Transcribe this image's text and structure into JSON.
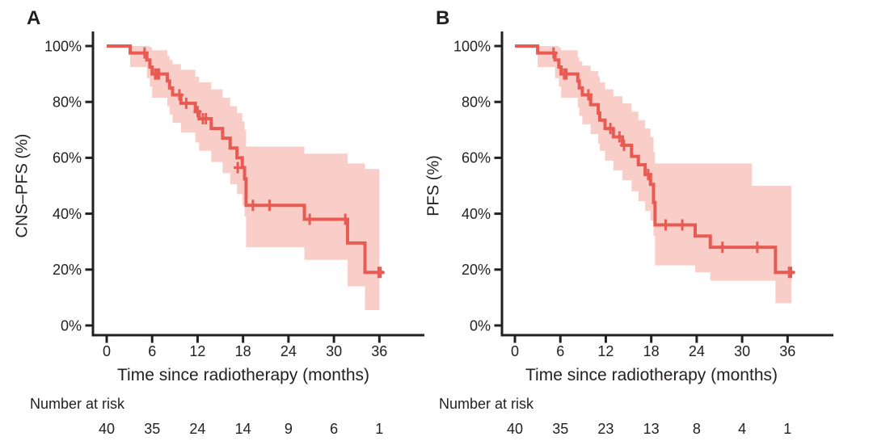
{
  "figure": {
    "background": "#ffffff",
    "text_color": "#231f20",
    "axis_color": "#231f20",
    "curve_color": "#e85b52",
    "band_color": "#f9cec9"
  },
  "chart_data": [
    {
      "type": "line",
      "subtype": "kaplan-meier",
      "panel_label": "A",
      "ylabel": "CNS–PFS (%)",
      "xlabel": "Time since radiotherapy (months)",
      "risk_caption": "Number at risk",
      "x_ticks": [
        0,
        6,
        12,
        18,
        24,
        30,
        36
      ],
      "y_tick_values": [
        100,
        80,
        60,
        40,
        20,
        0
      ],
      "y_tick_labels": [
        "100%",
        "80%",
        "60%",
        "40%",
        "20%",
        "0%"
      ],
      "xlim": [
        0,
        42
      ],
      "ylim": [
        0,
        100
      ],
      "grid": false,
      "number_at_risk": [
        40,
        35,
        24,
        14,
        9,
        6,
        1
      ],
      "curve": [
        [
          0,
          100
        ],
        [
          3.1,
          97.5
        ],
        [
          5.3,
          95
        ],
        [
          5.7,
          92.5
        ],
        [
          6.0,
          90
        ],
        [
          8.0,
          87.5
        ],
        [
          8.3,
          85
        ],
        [
          8.7,
          82.5
        ],
        [
          9.8,
          79.5
        ],
        [
          11.7,
          76.5
        ],
        [
          12.2,
          74
        ],
        [
          13.8,
          70.5
        ],
        [
          15.3,
          67
        ],
        [
          16.3,
          63.5
        ],
        [
          17.2,
          60
        ],
        [
          17.9,
          56.5
        ],
        [
          18.2,
          52.5
        ],
        [
          18.4,
          43
        ],
        [
          26.1,
          38
        ],
        [
          31.8,
          29.5
        ],
        [
          34.1,
          19
        ],
        [
          36.6,
          19
        ]
      ],
      "censors": [
        [
          5.0,
          97.5
        ],
        [
          6.4,
          90
        ],
        [
          6.65,
          90
        ],
        [
          6.9,
          90
        ],
        [
          9.6,
          82.5
        ],
        [
          10.5,
          79.5
        ],
        [
          12.0,
          76.5
        ],
        [
          12.7,
          74
        ],
        [
          13.1,
          74
        ],
        [
          17.3,
          56.5
        ],
        [
          19.3,
          43
        ],
        [
          21.5,
          43
        ],
        [
          26.8,
          38
        ],
        [
          31.5,
          38
        ],
        [
          35.9,
          19
        ],
        [
          36.15,
          19
        ]
      ],
      "band": [
        [
          3.1,
          92.5,
          100
        ],
        [
          5.3,
          88.5,
          100
        ],
        [
          5.7,
          85.5,
          99.5
        ],
        [
          6.0,
          81.5,
          98.5
        ],
        [
          8.0,
          78.5,
          96.5
        ],
        [
          8.3,
          75.5,
          95
        ],
        [
          8.7,
          72.5,
          93.5
        ],
        [
          9.8,
          69,
          91.5
        ],
        [
          11.7,
          65.5,
          89
        ],
        [
          12.2,
          62.5,
          87
        ],
        [
          13.8,
          58.5,
          84.5
        ],
        [
          15.3,
          54.5,
          81.5
        ],
        [
          16.3,
          50.5,
          78.5
        ],
        [
          17.2,
          47,
          76
        ],
        [
          17.9,
          43,
          73
        ],
        [
          18.2,
          39,
          70
        ],
        [
          18.4,
          28,
          64
        ],
        [
          26.1,
          23.5,
          61.5
        ],
        [
          31.8,
          14,
          58
        ],
        [
          34.1,
          5.5,
          56
        ],
        [
          36.0,
          5.5,
          56
        ]
      ]
    },
    {
      "type": "line",
      "subtype": "kaplan-meier",
      "panel_label": "B",
      "ylabel": "PFS (%)",
      "xlabel": "Time since radiotherapy (months)",
      "risk_caption": "Number at risk",
      "x_ticks": [
        0,
        6,
        12,
        18,
        24,
        30,
        36
      ],
      "y_tick_values": [
        100,
        80,
        60,
        40,
        20,
        0
      ],
      "y_tick_labels": [
        "100%",
        "80%",
        "60%",
        "40%",
        "20%",
        "0%"
      ],
      "xlim": [
        0,
        42
      ],
      "ylim": [
        0,
        100
      ],
      "grid": false,
      "number_at_risk": [
        40,
        35,
        23,
        13,
        8,
        4,
        1
      ],
      "curve": [
        [
          0,
          100
        ],
        [
          3.0,
          97.5
        ],
        [
          5.3,
          95
        ],
        [
          5.8,
          92.5
        ],
        [
          6.1,
          90
        ],
        [
          8.3,
          87.5
        ],
        [
          8.5,
          85
        ],
        [
          8.9,
          82.5
        ],
        [
          10.0,
          79
        ],
        [
          11.0,
          76
        ],
        [
          11.2,
          73.5
        ],
        [
          11.9,
          70.5
        ],
        [
          13.0,
          67.5
        ],
        [
          14.2,
          64.5
        ],
        [
          15.4,
          60.5
        ],
        [
          16.3,
          57.5
        ],
        [
          17.2,
          54
        ],
        [
          17.9,
          50.5
        ],
        [
          18.3,
          44
        ],
        [
          18.5,
          36
        ],
        [
          23.8,
          32
        ],
        [
          25.8,
          28
        ],
        [
          34.4,
          19
        ],
        [
          36.9,
          19
        ]
      ],
      "censors": [
        [
          5.1,
          97.5
        ],
        [
          6.5,
          90
        ],
        [
          6.8,
          90
        ],
        [
          9.7,
          82.5
        ],
        [
          12.6,
          70.5
        ],
        [
          13.8,
          67.5
        ],
        [
          14.4,
          64.5
        ],
        [
          17.6,
          54
        ],
        [
          19.9,
          36
        ],
        [
          22.1,
          36
        ],
        [
          27.4,
          28
        ],
        [
          32.0,
          28
        ],
        [
          36.2,
          19
        ],
        [
          36.45,
          19
        ]
      ],
      "band": [
        [
          3.0,
          92.5,
          100
        ],
        [
          5.3,
          88.5,
          100
        ],
        [
          5.8,
          85.5,
          99.5
        ],
        [
          6.1,
          81.5,
          98.5
        ],
        [
          8.3,
          78,
          96
        ],
        [
          8.5,
          75,
          94.5
        ],
        [
          8.9,
          72,
          93
        ],
        [
          10.0,
          68.5,
          91
        ],
        [
          11.0,
          65,
          89
        ],
        [
          11.2,
          62.5,
          87
        ],
        [
          11.9,
          59,
          84.5
        ],
        [
          13.0,
          55.5,
          82
        ],
        [
          14.2,
          52,
          79.5
        ],
        [
          15.4,
          48,
          76.5
        ],
        [
          16.3,
          44.5,
          73.5
        ],
        [
          17.2,
          41,
          70.5
        ],
        [
          17.9,
          37.5,
          67.5
        ],
        [
          18.3,
          32,
          62
        ],
        [
          18.5,
          21.5,
          58
        ],
        [
          23.8,
          19,
          58
        ],
        [
          25.8,
          16,
          58
        ],
        [
          31.3,
          16,
          50
        ],
        [
          34.4,
          8,
          50
        ],
        [
          36.5,
          8,
          50
        ]
      ]
    }
  ]
}
